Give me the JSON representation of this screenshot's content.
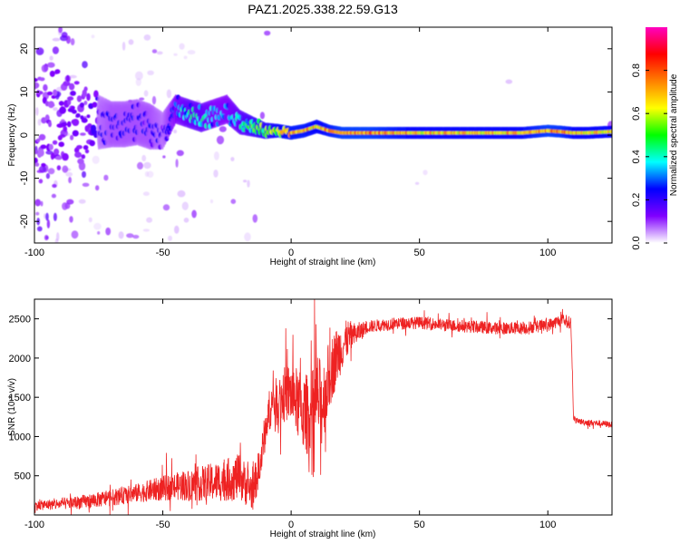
{
  "title": "PAZ1.2025.338.22.59.G13",
  "chart_data": [
    {
      "type": "heatmap",
      "xlabel": "Height of straight line (km)",
      "ylabel": "Frequency (Hz)",
      "xlim": [
        -100,
        125
      ],
      "ylim": [
        -25,
        25
      ],
      "xticks": [
        -100,
        -50,
        0,
        50,
        100
      ],
      "yticks": [
        -20,
        -10,
        0,
        10,
        20
      ],
      "colorbar": {
        "label": "Normalized spectral amplitude",
        "range": [
          0,
          1
        ],
        "ticks": [
          0.0,
          0.2,
          0.4,
          0.6,
          0.8
        ],
        "colors": [
          "#ffffff",
          "#8000ff",
          "#0000ff",
          "#00ffff",
          "#00ff00",
          "#ffff00",
          "#ff8000",
          "#ff0000",
          "#ff00c0"
        ]
      },
      "ridge": {
        "x": [
          -100,
          -90,
          -80,
          -75,
          -70,
          -65,
          -60,
          -55,
          -50,
          -45,
          -40,
          -35,
          -30,
          -25,
          -20,
          -15,
          -10,
          -5,
          0,
          5,
          10,
          15,
          20,
          25,
          30,
          40,
          50,
          60,
          70,
          80,
          90,
          100,
          105,
          110,
          115,
          125
        ],
        "y": [
          5,
          4,
          3,
          3,
          2.5,
          2.5,
          3,
          2,
          1,
          6,
          5,
          4,
          5,
          6,
          3,
          2,
          1,
          1,
          0.5,
          1,
          2,
          1,
          0.5,
          0.5,
          0.5,
          0.5,
          0.5,
          0.5,
          0.5,
          0.5,
          0.5,
          1,
          0.8,
          0.5,
          0.5,
          0.8
        ],
        "amplitude": [
          0.12,
          0.12,
          0.14,
          0.2,
          0.25,
          0.25,
          0.25,
          0.25,
          0.2,
          0.35,
          0.45,
          0.45,
          0.35,
          0.35,
          0.45,
          0.55,
          0.6,
          0.7,
          0.75,
          0.75,
          0.7,
          0.75,
          0.8,
          0.8,
          0.8,
          0.75,
          0.7,
          0.72,
          0.7,
          0.72,
          0.72,
          0.8,
          0.78,
          0.72,
          0.7,
          0.7
        ],
        "band_halfwidth_hz": [
          12,
          12,
          10,
          6,
          5,
          5,
          5,
          5,
          4,
          3,
          3,
          3,
          3,
          3,
          2.5,
          2,
          1.5,
          1.2,
          1.2,
          1.2,
          1.2,
          1,
          1,
          1,
          1,
          1,
          1,
          1,
          1,
          1,
          1,
          1,
          1,
          1,
          1,
          1
        ]
      }
    },
    {
      "type": "line",
      "xlabel": "Height of straight line (km)",
      "ylabel": "SNR (10 * v/v)",
      "xlim": [
        -100,
        125
      ],
      "ylim": [
        0,
        2750
      ],
      "xticks": [
        -100,
        -50,
        0,
        50,
        100
      ],
      "yticks": [
        500,
        1000,
        1500,
        2000,
        2500
      ],
      "color": "#ee2222",
      "series": [
        {
          "x": [
            -100,
            -90,
            -80,
            -70,
            -60,
            -50,
            -40,
            -30,
            -25,
            -20,
            -15,
            -12,
            -10,
            -8,
            -5,
            -2,
            0,
            3,
            5,
            8,
            10,
            12,
            15,
            18,
            20,
            22,
            25,
            30,
            35,
            40,
            50,
            60,
            70,
            80,
            90,
            100,
            105,
            109,
            110,
            111,
            115,
            120,
            125
          ],
          "y": [
            120,
            140,
            170,
            220,
            280,
            340,
            380,
            420,
            450,
            480,
            300,
            650,
            1100,
            1400,
            1450,
            1550,
            1550,
            1400,
            1300,
            1250,
            1500,
            1400,
            1800,
            2050,
            2150,
            2250,
            2300,
            2400,
            2420,
            2440,
            2450,
            2420,
            2400,
            2380,
            2380,
            2420,
            2480,
            2450,
            1250,
            1200,
            1180,
            1170,
            1150
          ]
        }
      ],
      "noise_amplitude": {
        "x": [
          -100,
          -60,
          -40,
          -20,
          -15,
          -10,
          0,
          10,
          20,
          25,
          30,
          50,
          100,
          109,
          110,
          125
        ],
        "y": [
          60,
          120,
          200,
          300,
          250,
          250,
          400,
          600,
          300,
          150,
          80,
          80,
          80,
          80,
          40,
          40
        ]
      }
    }
  ]
}
